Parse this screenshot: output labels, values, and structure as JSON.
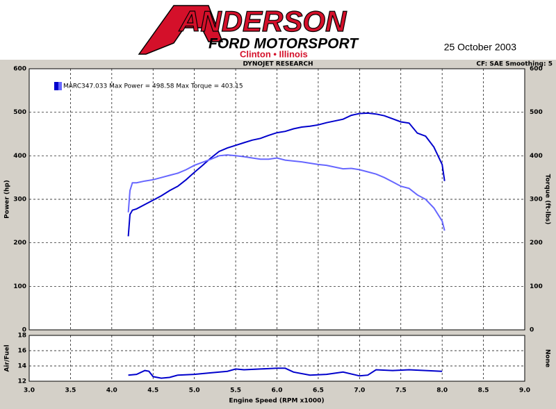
{
  "header": {
    "logo_main": "ANDERSON",
    "logo_sub": "FORD MOTORSPORT",
    "logo_location": "Clinton • Illinois",
    "date": "25 October 2003"
  },
  "chart_data": [
    {
      "type": "line",
      "title": "DYNOJET RESEARCH",
      "annotation": "CF: SAE  Smoothing: 5",
      "legend_text": "MARC347.033 Max Power = 498.58 Max Torque = 403.15",
      "ylabel": "Power (hp)",
      "y2label": "Torque (ft-lbs)",
      "xlim": [
        3,
        9
      ],
      "xticks": [
        3,
        3.5,
        4,
        4.5,
        5,
        5.5,
        6,
        6.5,
        7,
        7.5,
        8,
        8.5,
        9
      ],
      "ylim": [
        0,
        600
      ],
      "yticks": [
        0,
        100,
        200,
        300,
        400,
        500,
        600
      ],
      "y2lim": [
        0,
        600
      ],
      "y2ticks": [
        0,
        100,
        200,
        300,
        400,
        500,
        600
      ],
      "grid": true,
      "x": [
        4.2,
        4.22,
        4.25,
        4.3,
        4.4,
        4.5,
        4.6,
        4.7,
        4.8,
        4.9,
        5.0,
        5.1,
        5.2,
        5.3,
        5.4,
        5.5,
        5.6,
        5.7,
        5.8,
        5.9,
        6.0,
        6.1,
        6.2,
        6.3,
        6.4,
        6.5,
        6.6,
        6.7,
        6.8,
        6.9,
        7.0,
        7.1,
        7.2,
        7.3,
        7.4,
        7.5,
        7.6,
        7.7,
        7.8,
        7.9,
        8.0,
        8.03
      ],
      "series": [
        {
          "color": "#0000cc",
          "values": [
            215,
            265,
            275,
            278,
            288,
            298,
            308,
            320,
            330,
            345,
            362,
            378,
            395,
            410,
            418,
            424,
            430,
            436,
            440,
            447,
            453,
            456,
            462,
            466,
            468,
            471,
            476,
            480,
            484,
            493,
            497,
            498,
            496,
            492,
            485,
            478,
            475,
            452,
            445,
            420,
            380,
            342
          ]
        },
        {
          "color": "#6666ff",
          "axis": "y2",
          "values": [
            270,
            320,
            338,
            338,
            342,
            345,
            350,
            355,
            360,
            368,
            378,
            385,
            392,
            400,
            402,
            400,
            398,
            395,
            392,
            392,
            395,
            390,
            388,
            386,
            383,
            380,
            378,
            374,
            370,
            371,
            368,
            363,
            358,
            350,
            340,
            330,
            325,
            310,
            300,
            280,
            250,
            228
          ]
        }
      ]
    },
    {
      "type": "line",
      "ylabel": "Air/Fuel",
      "y2label": "None",
      "xlabel": "Engine Speed (RPM x1000)",
      "xlim": [
        3,
        9
      ],
      "xticks": [
        {
          "value": 3,
          "label": "3.0"
        },
        3.5,
        {
          "value": 4,
          "label": "4.0"
        },
        4.5,
        {
          "value": 5,
          "label": "5.0"
        },
        5.5,
        {
          "value": 6,
          "label": "6.0"
        },
        6.5,
        {
          "value": 7,
          "label": "7.0"
        },
        7.5,
        {
          "value": 8,
          "label": "8.0"
        },
        8.5,
        {
          "value": 9,
          "label": "9.0"
        }
      ],
      "ylim": [
        12,
        18
      ],
      "yticks": [
        12,
        14,
        16,
        18
      ],
      "grid": true,
      "color": "#0000cc",
      "x": [
        4.2,
        4.3,
        4.4,
        4.45,
        4.5,
        4.6,
        4.7,
        4.8,
        5.0,
        5.2,
        5.4,
        5.5,
        5.6,
        5.8,
        6.0,
        6.1,
        6.2,
        6.4,
        6.6,
        6.8,
        7.0,
        7.1,
        7.2,
        7.4,
        7.6,
        7.8,
        8.0
      ],
      "values": [
        12.8,
        12.9,
        13.4,
        13.3,
        12.6,
        12.4,
        12.5,
        12.8,
        12.9,
        13.1,
        13.3,
        13.6,
        13.5,
        13.6,
        13.7,
        13.7,
        13.2,
        12.8,
        12.9,
        13.2,
        12.7,
        12.8,
        13.5,
        13.4,
        13.5,
        13.4,
        13.3
      ]
    }
  ]
}
